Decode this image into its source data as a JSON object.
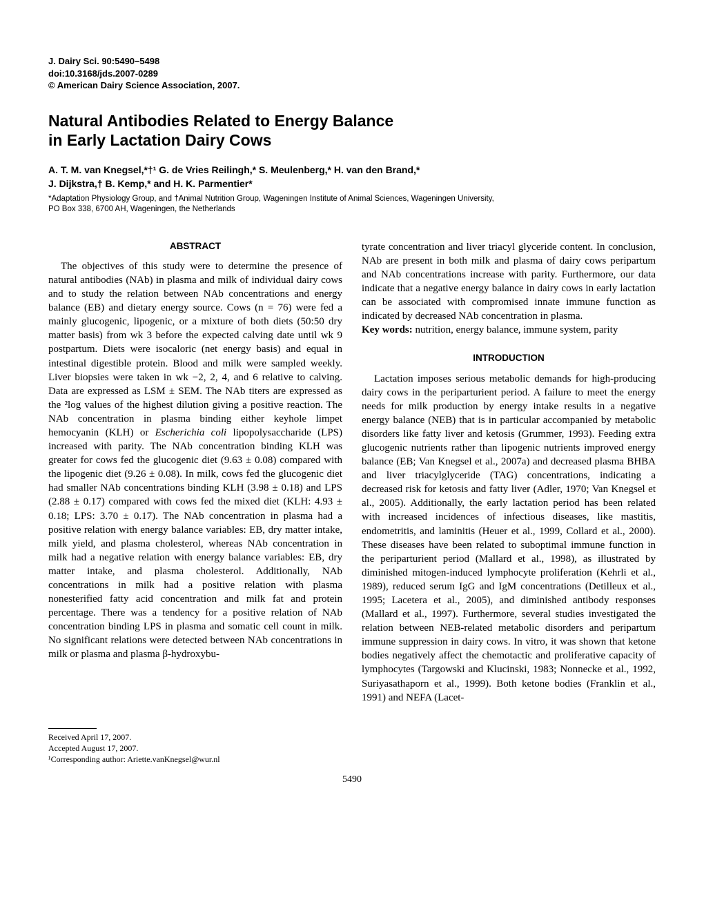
{
  "header": {
    "journal_line": "J. Dairy Sci. 90:5490–5498",
    "doi_line": "doi:10.3168/jds.2007-0289",
    "copyright_line": "© American Dairy Science Association, 2007."
  },
  "title_line1": "Natural Antibodies Related to Energy Balance",
  "title_line2": "in Early Lactation Dairy Cows",
  "authors_line1": "A. T. M. van Knegsel,*†¹ G. de Vries Reilingh,* S. Meulenberg,* H. van den Brand,*",
  "authors_line2": "J. Dijkstra,† B. Kemp,* and H. K. Parmentier*",
  "affiliation_line1": "*Adaptation Physiology Group, and †Animal Nutrition Group, Wageningen Institute of Animal Sciences, Wageningen University,",
  "affiliation_line2": "PO Box 338, 6700 AH, Wageningen, the Netherlands",
  "abstract_head": "ABSTRACT",
  "abstract_body_1": "The objectives of this study were to determine the presence of natural antibodies (NAb) in plasma and milk of individual dairy cows and to study the relation between NAb concentrations and energy balance (EB) and dietary energy source. Cows (n = 76) were fed a mainly glucogenic, lipogenic, or a mixture of both diets (50:50 dry matter basis) from wk 3 before the expected calving date until wk 9 postpartum. Diets were isocaloric (net energy basis) and equal in intestinal digestible protein. Blood and milk were sampled weekly. Liver biopsies were taken in wk −2, 2, 4, and 6 relative to calving. Data are expressed as LSM ± SEM. The NAb titers are expressed as the ²log values of the highest dilution giving a positive reaction. The NAb concentration in plasma binding either keyhole limpet hemocyanin (KLH) or ",
  "abstract_body_1_ital": "Escherichia coli",
  "abstract_body_1b": " lipopolysaccharide (LPS) increased with parity. The NAb concentration binding KLH was greater for cows fed the glucogenic diet (9.63 ± 0.08) compared with the lipogenic diet (9.26 ± 0.08). In milk, cows fed the glucogenic diet had smaller NAb concentrations binding KLH (3.98 ± 0.18) and LPS (2.88 ± 0.17) compared with cows fed the mixed diet (KLH: 4.93 ± 0.18; LPS: 3.70 ± 0.17). The NAb concentration in plasma had a positive relation with energy balance variables: EB, dry matter intake, milk yield, and plasma cholesterol, whereas NAb concentration in milk had a negative relation with energy balance variables: EB, dry matter intake, and plasma cholesterol. Additionally, NAb concentrations in milk had a positive relation with plasma nonesterified fatty acid concentration and milk fat and protein percentage. There was a tendency for a positive relation of NAb concentration binding LPS in plasma and somatic cell count in milk. No significant relations were detected between NAb concentrations in milk or plasma and plasma β-hydroxybu-",
  "abstract_body_2": "tyrate concentration and liver triacyl glyceride content. In conclusion, NAb are present in both milk and plasma of dairy cows peripartum and NAb concentrations increase with parity. Furthermore, our data indicate that a negative energy balance in dairy cows in early lactation can be associated with compromised innate immune function as indicated by decreased NAb concentration in plasma.",
  "keywords_label": "Key words:",
  "keywords_text": " nutrition, energy balance, immune system, parity",
  "intro_head": "INTRODUCTION",
  "intro_body": "Lactation imposes serious metabolic demands for high-producing dairy cows in the periparturient period. A failure to meet the energy needs for milk production by energy intake results in a negative energy balance (NEB) that is in particular accompanied by metabolic disorders like fatty liver and ketosis (Grummer, 1993). Feeding extra glucogenic nutrients rather than lipogenic nutrients improved energy balance (EB; Van Knegsel et al., 2007a) and decreased plasma BHBA and liver triacylglyceride (TAG) concentrations, indicating a decreased risk for ketosis and fatty liver (Adler, 1970; Van Knegsel et al., 2005). Additionally, the early lactation period has been related with increased incidences of infectious diseases, like mastitis, endometritis, and laminitis (Heuer et al., 1999, Collard et al., 2000). These diseases have been related to suboptimal immune function in the periparturient period (Mallard et al., 1998), as illustrated by diminished mitogen-induced lymphocyte proliferation (Kehrli et al., 1989), reduced serum IgG and IgM concentrations (Detilleux et al., 1995; Lacetera et al., 2005), and diminished antibody responses (Mallard et al., 1997). Furthermore, several studies investigated the relation between NEB-related metabolic disorders and peripartum immune suppression in dairy cows. In vitro, it was shown that ketone bodies negatively affect the chemotactic and proliferative capacity of lymphocytes (Targowski and Klucinski, 1983; Nonnecke et al., 1992, Suriyasathaporn et al., 1999). Both ketone bodies (Franklin et al., 1991) and NEFA (Lacet-",
  "footnotes": {
    "received": "Received April 17, 2007.",
    "accepted": "Accepted August 17, 2007.",
    "corresponding": "¹Corresponding author: Ariette.vanKnegsel@wur.nl"
  },
  "page_number": "5490"
}
